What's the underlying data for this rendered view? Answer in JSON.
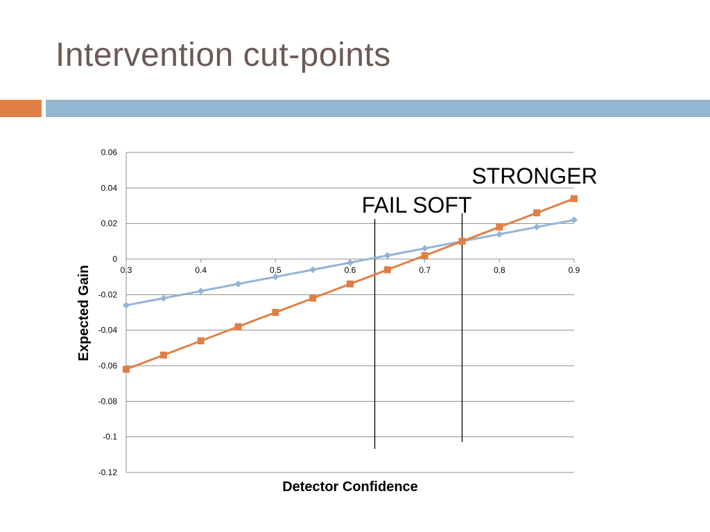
{
  "slide": {
    "title": "Intervention cut-points"
  },
  "colors": {
    "title": "#6b5a53",
    "accent_orange": "#e07f45",
    "accent_blue": "#94b6d2",
    "series_blue": "#95b3d7",
    "series_orange": "#e07f45",
    "gridline": "#8c8c8c"
  },
  "chart_data": {
    "type": "line",
    "xlabel": "Detector Confidence",
    "ylabel": "Expected Gain",
    "xlim": [
      0.3,
      0.9
    ],
    "ylim": [
      -0.12,
      0.06
    ],
    "x_ticks": [
      "0.3",
      "0.4",
      "0.5",
      "0.6",
      "0.7",
      "0.8",
      "0.9"
    ],
    "y_ticks": [
      "0.06",
      "0.04",
      "0.02",
      "0",
      "-0.02",
      "-0.04",
      "-0.06",
      "-0.08",
      "-0.1",
      "-0.12"
    ],
    "grid": "horizontal",
    "x": [
      0.3,
      0.35,
      0.4,
      0.45,
      0.5,
      0.55,
      0.6,
      0.65,
      0.7,
      0.75,
      0.8,
      0.85,
      0.9
    ],
    "series": [
      {
        "marker": "diamond",
        "color": "#95b3d7",
        "values": [
          -0.026,
          -0.022,
          -0.018,
          -0.014,
          -0.01,
          -0.006,
          -0.002,
          0.002,
          0.006,
          0.01,
          0.014,
          0.018,
          0.022
        ]
      },
      {
        "marker": "square",
        "color": "#e07f45",
        "values": [
          -0.062,
          -0.054,
          -0.046,
          -0.038,
          -0.03,
          -0.022,
          -0.014,
          -0.006,
          0.002,
          0.01,
          0.018,
          0.026,
          0.034
        ]
      }
    ],
    "annotations": [
      {
        "text": "FAIL SOFT",
        "x": 0.633
      },
      {
        "text": "STRONGER",
        "x": 0.75
      }
    ]
  }
}
